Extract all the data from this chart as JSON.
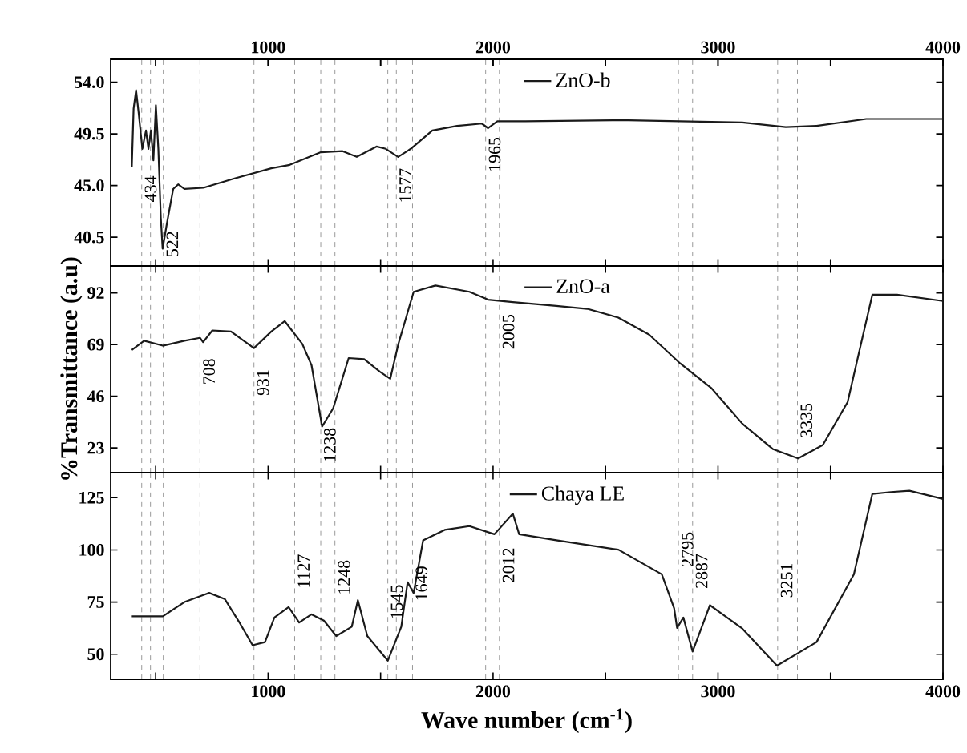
{
  "chart_data": [
    {
      "type": "line",
      "marker": "none",
      "legend": "top",
      "tick_labels": "y",
      "series": [
        {
          "name": "ZnO-b",
          "color": "#1a1a1a",
          "x": [
            394,
            402,
            413,
            424,
            441,
            457,
            468,
            479,
            490,
            501,
            512,
            523,
            531,
            550,
            578,
            600,
            628,
            711,
            848,
            1014,
            1096,
            1234,
            1331,
            1394,
            1482,
            1523,
            1578,
            1634,
            1730,
            1840,
            1950,
            1978,
            2019,
            2143,
            2557,
            3108,
            3301,
            3438,
            3659,
            4000
          ],
          "values": [
            46.6,
            51.7,
            53.3,
            51.4,
            48.2,
            49.8,
            48.2,
            49.8,
            47.2,
            52.0,
            48.2,
            42.2,
            39.5,
            41.7,
            44.7,
            45.1,
            44.7,
            44.8,
            45.6,
            46.5,
            46.8,
            47.9,
            48.0,
            47.5,
            48.4,
            48.2,
            47.5,
            48.2,
            49.8,
            50.2,
            50.4,
            50.0,
            50.6,
            50.6,
            50.7,
            50.5,
            50.1,
            50.2,
            50.8,
            50.8
          ]
        }
      ],
      "xlim": [
        300,
        4000
      ],
      "xticks": [
        {
          "value": 500,
          "label": null
        },
        1000,
        {
          "value": 1500,
          "label": null
        },
        2000,
        {
          "value": 2500,
          "label": null
        },
        3000,
        {
          "value": 3500,
          "label": null
        },
        4000
      ],
      "x2lim": [
        300,
        4000
      ],
      "x2ticks": [
        {
          "value": 500,
          "label": null
        },
        1000,
        {
          "value": 1500,
          "label": null
        },
        2000,
        {
          "value": 2500,
          "label": null
        },
        3000,
        {
          "value": 3500,
          "label": null
        },
        4000
      ],
      "ylim": [
        38,
        56
      ],
      "yticks": [
        {
          "value": 40.5,
          "label": "40.5"
        },
        {
          "value": 45,
          "label": "45.0"
        },
        {
          "value": 49.5,
          "label": "49.5"
        },
        {
          "value": 54,
          "label": "54.0"
        }
      ],
      "ref_lines": [
        {
          "axis": "x",
          "value": 438,
          "color": "#808080",
          "line_style": "dashed"
        },
        {
          "axis": "x",
          "value": 477,
          "color": "#808080",
          "line_style": "dashed"
        },
        {
          "axis": "x",
          "value": 534,
          "color": "#808080",
          "line_style": "dashed"
        },
        {
          "axis": "x",
          "value": 697,
          "color": "#808080",
          "line_style": "dashed"
        },
        {
          "axis": "x",
          "value": 937,
          "color": "#808080",
          "line_style": "dashed"
        },
        {
          "axis": "x",
          "value": 1118,
          "color": "#808080",
          "line_style": "dashed"
        },
        {
          "axis": "x",
          "value": 1234,
          "color": "#808080",
          "line_style": "dashed"
        },
        {
          "axis": "x",
          "value": 1297,
          "color": "#808080",
          "line_style": "dashed"
        },
        {
          "axis": "x",
          "value": 1532,
          "color": "#808080",
          "line_style": "dashed"
        },
        {
          "axis": "x",
          "value": 1570,
          "color": "#808080",
          "line_style": "dashed"
        },
        {
          "axis": "x",
          "value": 1642,
          "color": "#808080",
          "line_style": "dashed"
        },
        {
          "axis": "x",
          "value": 1967,
          "color": "#808080",
          "line_style": "dashed"
        },
        {
          "axis": "x",
          "value": 2028,
          "color": "#808080",
          "line_style": "dashed"
        },
        {
          "axis": "x",
          "value": 2824,
          "color": "#808080",
          "line_style": "dashed"
        },
        {
          "axis": "x",
          "value": 2887,
          "color": "#808080",
          "line_style": "dashed"
        },
        {
          "axis": "x",
          "value": 3265,
          "color": "#808080",
          "line_style": "dashed"
        },
        {
          "axis": "x",
          "value": 3353,
          "color": "#808080",
          "line_style": "dashed"
        }
      ],
      "annotations": [
        {
          "text": "434",
          "x": 438,
          "y": 44.7
        },
        {
          "text": "522",
          "x": 534,
          "y": 39.9
        },
        {
          "text": "1577",
          "x": 1570,
          "y": 45.0
        },
        {
          "text": "1965",
          "x": 1967,
          "y": 47.7
        }
      ]
    },
    {
      "type": "line",
      "marker": "none",
      "legend": "top",
      "tick_labels": "y",
      "ylabel": "%Transmittance (a.u)",
      "series": [
        {
          "name": "ZnO-a",
          "color": "#1a1a1a",
          "x": [
            394,
            449,
            532,
            628,
            697,
            711,
            752,
            835,
            937,
            1014,
            1074,
            1152,
            1193,
            1240,
            1289,
            1358,
            1427,
            1496,
            1543,
            1579,
            1647,
            1744,
            1895,
            1978,
            2088,
            2281,
            2419,
            2557,
            2694,
            2832,
            2970,
            3108,
            3245,
            3356,
            3466,
            3576,
            3645,
            3686,
            3796,
            4000
          ],
          "values": [
            66.6,
            70.7,
            68.5,
            70.7,
            72.0,
            70.1,
            75.3,
            74.8,
            67.4,
            74.8,
            79.4,
            69.3,
            59.8,
            32.5,
            40.6,
            63.0,
            62.5,
            57.0,
            53.8,
            69.3,
            92.5,
            95.3,
            92.5,
            89.0,
            87.9,
            86.2,
            84.9,
            81.0,
            73.4,
            60.6,
            49.7,
            33.8,
            22.4,
            18.3,
            24.3,
            43.4,
            73.4,
            91.2,
            91.2,
            88.4
          ]
        }
      ],
      "xlim": [
        300,
        4000
      ],
      "xticks": [
        {
          "value": 500,
          "label": null
        },
        1000,
        {
          "value": 1500,
          "label": null
        },
        2000,
        {
          "value": 2500,
          "label": null
        },
        3000,
        {
          "value": 3500,
          "label": null
        },
        4000
      ],
      "ylim": [
        12,
        104
      ],
      "yticks": [
        23,
        46,
        69,
        92
      ],
      "ref_lines": [
        {
          "axis": "x",
          "value": 438,
          "color": "#808080",
          "line_style": "dashed"
        },
        {
          "axis": "x",
          "value": 477,
          "color": "#808080",
          "line_style": "dashed"
        },
        {
          "axis": "x",
          "value": 534,
          "color": "#808080",
          "line_style": "dashed"
        },
        {
          "axis": "x",
          "value": 697,
          "color": "#808080",
          "line_style": "dashed"
        },
        {
          "axis": "x",
          "value": 937,
          "color": "#808080",
          "line_style": "dashed"
        },
        {
          "axis": "x",
          "value": 1118,
          "color": "#808080",
          "line_style": "dashed"
        },
        {
          "axis": "x",
          "value": 1234,
          "color": "#808080",
          "line_style": "dashed"
        },
        {
          "axis": "x",
          "value": 1297,
          "color": "#808080",
          "line_style": "dashed"
        },
        {
          "axis": "x",
          "value": 1532,
          "color": "#808080",
          "line_style": "dashed"
        },
        {
          "axis": "x",
          "value": 1570,
          "color": "#808080",
          "line_style": "dashed"
        },
        {
          "axis": "x",
          "value": 1642,
          "color": "#808080",
          "line_style": "dashed"
        },
        {
          "axis": "x",
          "value": 1967,
          "color": "#808080",
          "line_style": "dashed"
        },
        {
          "axis": "x",
          "value": 2028,
          "color": "#808080",
          "line_style": "dashed"
        },
        {
          "axis": "x",
          "value": 2824,
          "color": "#808080",
          "line_style": "dashed"
        },
        {
          "axis": "x",
          "value": 2887,
          "color": "#808080",
          "line_style": "dashed"
        },
        {
          "axis": "x",
          "value": 3265,
          "color": "#808080",
          "line_style": "dashed"
        },
        {
          "axis": "x",
          "value": 3353,
          "color": "#808080",
          "line_style": "dashed"
        }
      ],
      "annotations": [
        {
          "text": "708",
          "x": 697,
          "y": 57.0
        },
        {
          "text": "931",
          "x": 937,
          "y": 52.1
        },
        {
          "text": "1238",
          "x": 1234,
          "y": 24.2
        },
        {
          "text": "2005",
          "x": 2028,
          "y": 74.7
        },
        {
          "text": "3335",
          "x": 3353,
          "y": 35.2
        }
      ]
    },
    {
      "type": "line",
      "marker": "none",
      "legend": "top",
      "xlabel": "Wave number (cm$^{-1}$)",
      "series": [
        {
          "name": "Chaya LE",
          "color": "#1a1a1a",
          "x": [
            394,
            532,
            628,
            738,
            807,
            876,
            931,
            986,
            1028,
            1091,
            1138,
            1193,
            1248,
            1303,
            1372,
            1399,
            1441,
            1532,
            1592,
            1620,
            1647,
            1689,
            1785,
            1895,
            2006,
            2088,
            2116,
            2281,
            2557,
            2750,
            2805,
            2818,
            2846,
            2887,
            2964,
            3108,
            3262,
            3438,
            3604,
            3686,
            3769,
            3851,
            4000
          ],
          "values": [
            68.2,
            68.2,
            75.0,
            79.4,
            76.5,
            64.6,
            54.3,
            55.8,
            67.6,
            72.6,
            65.2,
            69.1,
            66.1,
            58.7,
            63.2,
            75.9,
            58.7,
            46.9,
            63.2,
            84.5,
            79.4,
            104.6,
            109.6,
            111.4,
            107.5,
            117.3,
            107.5,
            104.6,
            100.1,
            88.3,
            72.0,
            62.6,
            67.6,
            51.3,
            73.5,
            62.3,
            44.5,
            55.8,
            88.3,
            126.8,
            127.7,
            128.3,
            124.4
          ]
        }
      ],
      "xlim": [
        300,
        4000
      ],
      "xticks": [
        {
          "value": 500,
          "label": null
        },
        1000,
        {
          "value": 1500,
          "label": null
        },
        2000,
        {
          "value": 2500,
          "label": null
        },
        3000,
        {
          "value": 3500,
          "label": null
        },
        4000
      ],
      "ylim": [
        38,
        137
      ],
      "yticks": [
        50,
        75,
        100,
        125
      ],
      "ref_lines": [
        {
          "axis": "x",
          "value": 438,
          "color": "#808080",
          "line_style": "dashed"
        },
        {
          "axis": "x",
          "value": 477,
          "color": "#808080",
          "line_style": "dashed"
        },
        {
          "axis": "x",
          "value": 534,
          "color": "#808080",
          "line_style": "dashed"
        },
        {
          "axis": "x",
          "value": 697,
          "color": "#808080",
          "line_style": "dashed"
        },
        {
          "axis": "x",
          "value": 937,
          "color": "#808080",
          "line_style": "dashed"
        },
        {
          "axis": "x",
          "value": 1118,
          "color": "#808080",
          "line_style": "dashed"
        },
        {
          "axis": "x",
          "value": 1234,
          "color": "#808080",
          "line_style": "dashed"
        },
        {
          "axis": "x",
          "value": 1297,
          "color": "#808080",
          "line_style": "dashed"
        },
        {
          "axis": "x",
          "value": 1532,
          "color": "#808080",
          "line_style": "dashed"
        },
        {
          "axis": "x",
          "value": 1570,
          "color": "#808080",
          "line_style": "dashed"
        },
        {
          "axis": "x",
          "value": 1642,
          "color": "#808080",
          "line_style": "dashed"
        },
        {
          "axis": "x",
          "value": 1967,
          "color": "#808080",
          "line_style": "dashed"
        },
        {
          "axis": "x",
          "value": 2028,
          "color": "#808080",
          "line_style": "dashed"
        },
        {
          "axis": "x",
          "value": 2824,
          "color": "#808080",
          "line_style": "dashed"
        },
        {
          "axis": "x",
          "value": 2887,
          "color": "#808080",
          "line_style": "dashed"
        },
        {
          "axis": "x",
          "value": 3265,
          "color": "#808080",
          "line_style": "dashed"
        },
        {
          "axis": "x",
          "value": 3353,
          "color": "#808080",
          "line_style": "dashed"
        }
      ],
      "annotations": [
        {
          "text": "1127",
          "x": 1118,
          "y": 89.8
        },
        {
          "text": "1248",
          "x": 1297,
          "y": 86.8
        },
        {
          "text": "1545",
          "x": 1532,
          "y": 75.0
        },
        {
          "text": "1649",
          "x": 1642,
          "y": 83.9
        },
        {
          "text": "2012",
          "x": 2028,
          "y": 92.7
        },
        {
          "text": "2795",
          "x": 2824,
          "y": 100.2
        },
        {
          "text": "2887",
          "x": 2887,
          "y": 89.8
        },
        {
          "text": "3251",
          "x": 3265,
          "y": 85.4
        }
      ]
    }
  ]
}
